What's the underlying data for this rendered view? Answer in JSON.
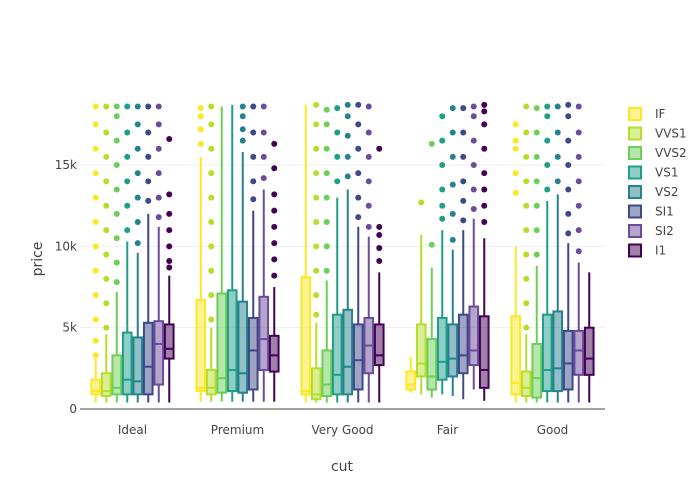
{
  "chart_data": {
    "type": "box",
    "xlabel": "cut",
    "ylabel": "price",
    "ylim": [
      0,
      19000
    ],
    "yticks": [
      0,
      5000,
      10000,
      15000
    ],
    "ytick_labels": [
      "0",
      "5k",
      "10k",
      "15k"
    ],
    "categories": [
      "Ideal",
      "Premium",
      "Very Good",
      "Fair",
      "Good"
    ],
    "legend_position": "top-right",
    "series": [
      {
        "name": "IF",
        "color": "#fde725",
        "boxes": [
          {
            "lowerfence": 400,
            "q1": 900,
            "median": 1100,
            "q3": 1800,
            "upperfence": 3100,
            "outliers": [
              3300,
              4200,
              5500,
              7000,
              8500,
              10000,
              11500,
              13000,
              14500,
              16000,
              17500,
              18600
            ]
          },
          {
            "lowerfence": 450,
            "q1": 1100,
            "median": 1300,
            "q3": 6700,
            "upperfence": 15500,
            "outliers": [
              16300,
              17200,
              18000,
              18500
            ]
          },
          {
            "lowerfence": 400,
            "q1": 900,
            "median": 1100,
            "q3": 8100,
            "upperfence": 18700,
            "outliers": []
          },
          {
            "lowerfence": 1000,
            "q1": 1200,
            "median": 1500,
            "q3": 2300,
            "upperfence": 3200,
            "outliers": []
          },
          {
            "lowerfence": 400,
            "q1": 900,
            "median": 1600,
            "q3": 5700,
            "upperfence": 10000,
            "outliers": [
              13300,
              14500,
              16000,
              16500,
              17500
            ]
          }
        ]
      },
      {
        "name": "VVS1",
        "color": "#b5de2b",
        "boxes": [
          {
            "lowerfence": 400,
            "q1": 800,
            "median": 1100,
            "q3": 2200,
            "upperfence": 4600,
            "outliers": [
              5000,
              6500,
              8000,
              9500,
              11000,
              12500,
              14000,
              15500,
              17000,
              18600
            ]
          },
          {
            "lowerfence": 450,
            "q1": 900,
            "median": 1300,
            "q3": 2400,
            "upperfence": 5000,
            "outliers": [
              5500,
              7000,
              8500,
              10000,
              11500,
              13000,
              14500,
              16000,
              17500,
              18600
            ]
          },
          {
            "lowerfence": 400,
            "q1": 600,
            "median": 900,
            "q3": 2500,
            "upperfence": 5300,
            "outliers": [
              5800,
              7000,
              8500,
              10000,
              11500,
              13000,
              14500,
              16000,
              17500,
              18700
            ]
          },
          {
            "lowerfence": 900,
            "q1": 2000,
            "median": 2800,
            "q3": 5200,
            "upperfence": 10700,
            "outliers": [
              12700
            ]
          },
          {
            "lowerfence": 400,
            "q1": 800,
            "median": 1300,
            "q3": 2300,
            "upperfence": 4600,
            "outliers": [
              5000,
              6500,
              8000,
              9500,
              11000,
              12500,
              14000,
              15500,
              17000,
              18600
            ]
          }
        ]
      },
      {
        "name": "VVS2",
        "color": "#6ece58",
        "boxes": [
          {
            "lowerfence": 400,
            "q1": 900,
            "median": 1300,
            "q3": 3300,
            "upperfence": 7200,
            "outliers": [
              7800,
              9000,
              10500,
              12000,
              13500,
              15000,
              16500,
              18000,
              18600
            ]
          },
          {
            "lowerfence": 450,
            "q1": 1000,
            "median": 1900,
            "q3": 7100,
            "upperfence": 18600,
            "outliers": []
          },
          {
            "lowerfence": 400,
            "q1": 800,
            "median": 1500,
            "q3": 3600,
            "upperfence": 7900,
            "outliers": [
              8500,
              10000,
              11500,
              13000,
              14500,
              16000,
              17500,
              18400
            ]
          },
          {
            "lowerfence": 700,
            "q1": 1200,
            "median": 2000,
            "q3": 4300,
            "upperfence": 8700,
            "outliers": [
              10100,
              16300
            ]
          },
          {
            "lowerfence": 400,
            "q1": 700,
            "median": 1900,
            "q3": 4000,
            "upperfence": 8800,
            "outliers": [
              9500,
              11000,
              12500,
              14000,
              15500,
              17000,
              18500
            ]
          }
        ]
      },
      {
        "name": "VS1",
        "color": "#1f9e89",
        "boxes": [
          {
            "lowerfence": 400,
            "q1": 900,
            "median": 1800,
            "q3": 4700,
            "upperfence": 10300,
            "outliers": [
              11000,
              12500,
              14000,
              15500,
              17000,
              18600
            ]
          },
          {
            "lowerfence": 450,
            "q1": 1100,
            "median": 2400,
            "q3": 7300,
            "upperfence": 18700,
            "outliers": []
          },
          {
            "lowerfence": 400,
            "q1": 900,
            "median": 2100,
            "q3": 5800,
            "upperfence": 13000,
            "outliers": [
              14000,
              15500,
              17000,
              18500
            ]
          },
          {
            "lowerfence": 900,
            "q1": 1800,
            "median": 2900,
            "q3": 5600,
            "upperfence": 11000,
            "outliers": [
              11700,
              12500,
              13500,
              15000,
              16500,
              18000
            ]
          },
          {
            "lowerfence": 400,
            "q1": 1100,
            "median": 2400,
            "q3": 5800,
            "upperfence": 12800,
            "outliers": [
              13500,
              15000,
              16500,
              18000,
              18600
            ]
          }
        ]
      },
      {
        "name": "VS2",
        "color": "#26828e",
        "boxes": [
          {
            "lowerfence": 400,
            "q1": 900,
            "median": 1700,
            "q3": 4400,
            "upperfence": 9600,
            "outliers": [
              10200,
              11500,
              13000,
              14500,
              16000,
              17500,
              18600
            ]
          },
          {
            "lowerfence": 450,
            "q1": 1000,
            "median": 2200,
            "q3": 6600,
            "upperfence": 15800,
            "outliers": [
              16500,
              17200,
              18000,
              18600
            ]
          },
          {
            "lowerfence": 400,
            "q1": 900,
            "median": 2600,
            "q3": 6100,
            "upperfence": 13500,
            "outliers": [
              14300,
              15500,
              16800,
              18000,
              18700
            ]
          },
          {
            "lowerfence": 800,
            "q1": 2000,
            "median": 3100,
            "q3": 5200,
            "upperfence": 9800,
            "outliers": [
              10400,
              12000,
              13800,
              15500,
              17000,
              18500
            ]
          },
          {
            "lowerfence": 400,
            "q1": 1100,
            "median": 2500,
            "q3": 6000,
            "upperfence": 13200,
            "outliers": [
              14000,
              15500,
              17000,
              18600
            ]
          }
        ]
      },
      {
        "name": "SI1",
        "color": "#3e4989",
        "boxes": [
          {
            "lowerfence": 400,
            "q1": 900,
            "median": 2600,
            "q3": 5300,
            "upperfence": 12000,
            "outliers": [
              12800,
              14000,
              15500,
              17000,
              18600
            ]
          },
          {
            "lowerfence": 450,
            "q1": 1200,
            "median": 3600,
            "q3": 5600,
            "upperfence": 12200,
            "outliers": [
              12900,
              14000,
              15500,
              17000,
              18600
            ]
          },
          {
            "lowerfence": 400,
            "q1": 1200,
            "median": 3000,
            "q3": 5200,
            "upperfence": 11200,
            "outliers": [
              11800,
              13000,
              14500,
              16000,
              17500,
              18700
            ]
          },
          {
            "lowerfence": 600,
            "q1": 2200,
            "median": 3300,
            "q3": 5800,
            "upperfence": 11000,
            "outliers": [
              11600,
              12800,
              14000,
              15500,
              17000,
              18500
            ]
          },
          {
            "lowerfence": 400,
            "q1": 1200,
            "median": 2800,
            "q3": 4800,
            "upperfence": 10200,
            "outliers": [
              10800,
              12000,
              13500,
              15000,
              16500,
              18000,
              18700
            ]
          }
        ]
      },
      {
        "name": "SI2",
        "color": "#6b4c9a",
        "boxes": [
          {
            "lowerfence": 400,
            "q1": 1500,
            "median": 4000,
            "q3": 5400,
            "upperfence": 11200,
            "outliers": [
              11800,
              13000,
              14500,
              16000,
              17500,
              18600
            ]
          },
          {
            "lowerfence": 450,
            "q1": 2400,
            "median": 4300,
            "q3": 6900,
            "upperfence": 13500,
            "outliers": [
              14200,
              15500,
              17000,
              18600
            ]
          },
          {
            "lowerfence": 400,
            "q1": 2200,
            "median": 3900,
            "q3": 5600,
            "upperfence": 10600,
            "outliers": [
              11200,
              12500,
              14000,
              15500,
              17000,
              18600
            ]
          },
          {
            "lowerfence": 1200,
            "q1": 2700,
            "median": 3600,
            "q3": 6300,
            "upperfence": 11700,
            "outliers": [
              12300,
              13500,
              15000,
              16500,
              18000,
              18600
            ]
          },
          {
            "lowerfence": 400,
            "q1": 2100,
            "median": 3600,
            "q3": 4800,
            "upperfence": 9000,
            "outliers": [
              9700,
              11000,
              12500,
              14000,
              15500,
              17000,
              18600
            ]
          }
        ]
      },
      {
        "name": "I1",
        "color": "#440154",
        "boxes": [
          {
            "lowerfence": 400,
            "q1": 3100,
            "median": 3700,
            "q3": 5200,
            "upperfence": 8200,
            "outliers": [
              8700,
              9100,
              10000,
              11000,
              12000,
              13200,
              16600
            ]
          },
          {
            "lowerfence": 450,
            "q1": 2300,
            "median": 3300,
            "q3": 4500,
            "upperfence": 7500,
            "outliers": [
              8200,
              9200,
              10200,
              11200,
              12200,
              13200,
              14800,
              16300
            ]
          },
          {
            "lowerfence": 400,
            "q1": 2700,
            "median": 3300,
            "q3": 5200,
            "upperfence": 8400,
            "outliers": [
              9100,
              9900,
              10700,
              11200,
              16000
            ]
          },
          {
            "lowerfence": 500,
            "q1": 1300,
            "median": 2400,
            "q3": 5700,
            "upperfence": 10500,
            "outliers": [
              11500,
              12500,
              13500,
              14500,
              16000,
              17500,
              18300,
              18700
            ]
          },
          {
            "lowerfence": 400,
            "q1": 2100,
            "median": 3100,
            "q3": 5000,
            "upperfence": 8400,
            "outliers": []
          }
        ]
      }
    ]
  }
}
